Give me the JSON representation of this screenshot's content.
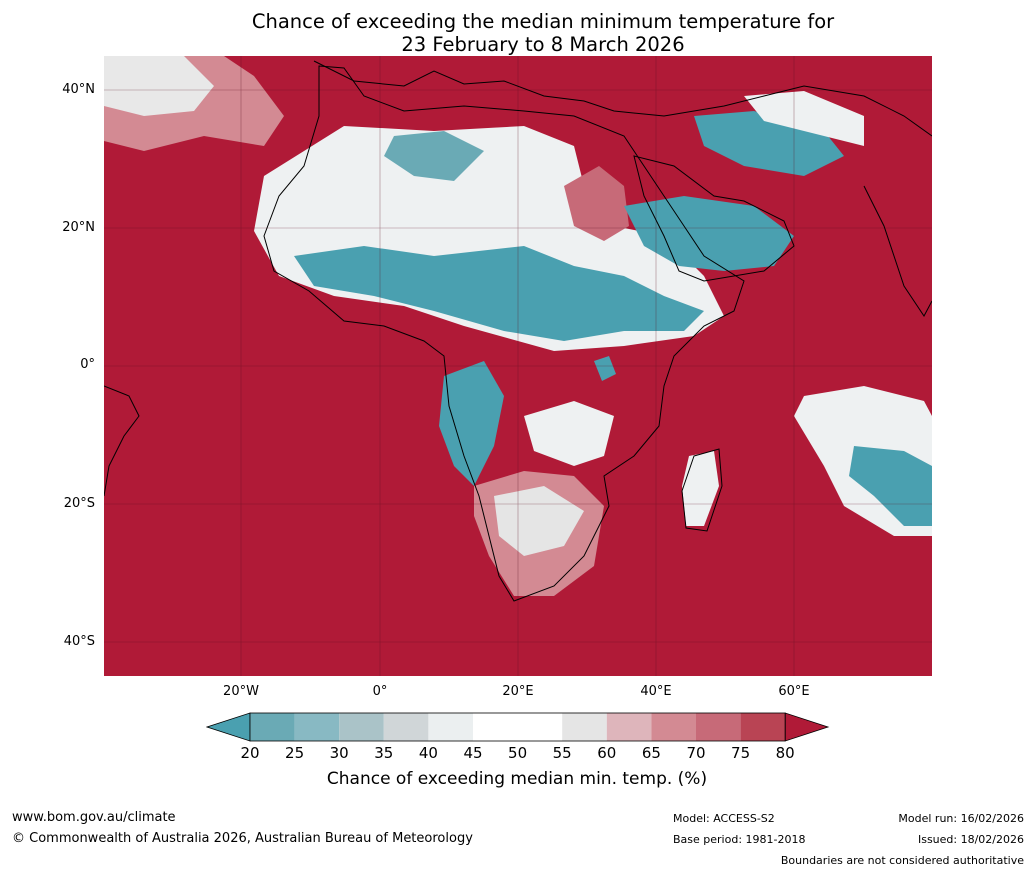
{
  "title_line1": "Chance of exceeding the median minimum temperature for",
  "title_line2": "23 February to 8 March 2026",
  "lat_labels": [
    "40°N",
    "20°N",
    "0°",
    "20°S",
    "40°S"
  ],
  "lon_labels": [
    "20°W",
    "0°",
    "20°E",
    "40°E",
    "60°E"
  ],
  "colorbar": {
    "ticks": [
      "20",
      "25",
      "30",
      "35",
      "40",
      "45",
      "50",
      "55",
      "60",
      "65",
      "70",
      "75",
      "80"
    ],
    "colors": [
      "#4aa0b0",
      "#6aaab5",
      "#88b9c3",
      "#aac3c8",
      "#d0d6d8",
      "#ebeff0",
      "#ffffff",
      "#ffffff",
      "#e5e5e5",
      "#deb5bb",
      "#d38a93",
      "#c76a78",
      "#b94454",
      "#b01a37"
    ],
    "label": "Chance of exceeding median min. temp. (%)"
  },
  "footer": {
    "website": "www.bom.gov.au/climate",
    "copyright": "© Commonwealth of Australia 2026, Australian Bureau of Meteorology",
    "model": "Model: ACCESS-S2",
    "base_period": "Base period: 1981-2018",
    "model_run": "Model run: 16/02/2026",
    "issued": "Issued: 18/02/2026",
    "disclaimer": "Boundaries are not considered authoritative"
  }
}
